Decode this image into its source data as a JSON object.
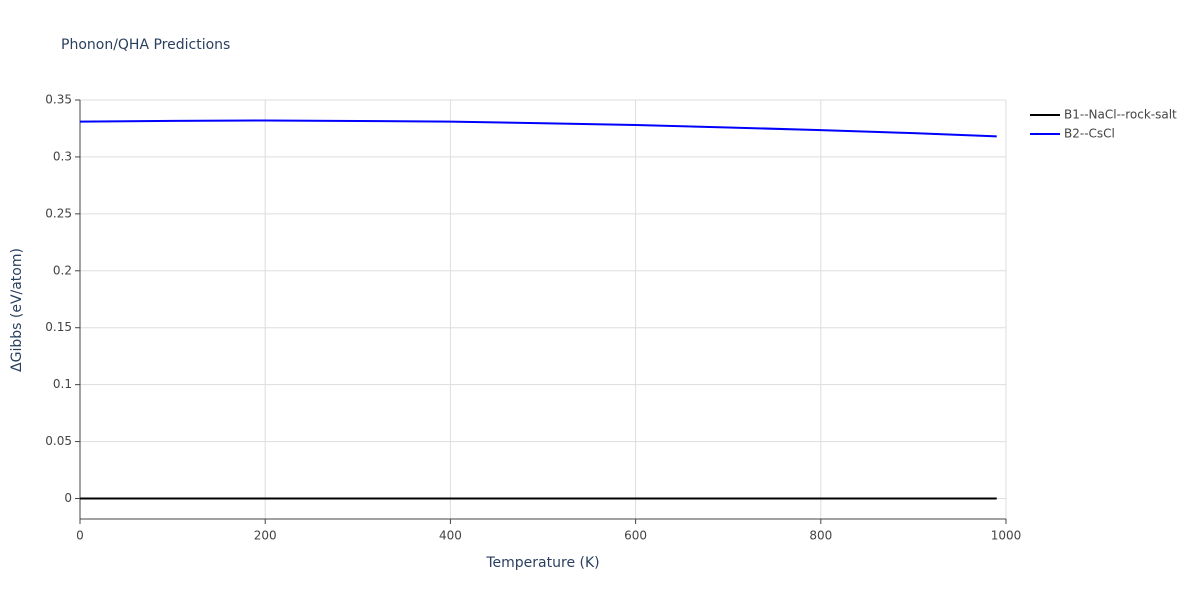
{
  "chart_data": {
    "type": "line",
    "title": "Phonon/QHA Predictions",
    "x_label": "Temperature (K)",
    "y_label": "ΔGibbs (eV/atom)",
    "x": [
      0,
      100,
      200,
      300,
      400,
      500,
      600,
      700,
      800,
      900,
      990
    ],
    "series": [
      {
        "name": "B1--NaCl--rock-salt",
        "color": "#000000",
        "values": [
          0,
          0,
          0,
          0,
          0,
          0,
          0,
          0,
          0,
          0,
          0
        ]
      },
      {
        "name": "B2--CsCl",
        "color": "#0000ff",
        "values": [
          0.331,
          0.3317,
          0.332,
          0.3316,
          0.331,
          0.3296,
          0.328,
          0.3259,
          0.3235,
          0.3209,
          0.318
        ]
      }
    ],
    "xlim": [
      0,
      1000
    ],
    "xticks": [
      0,
      200,
      400,
      600,
      800,
      1000
    ],
    "ylim": [
      -0.018,
      0.35
    ],
    "yticks": [
      0,
      0.05,
      0.1,
      0.15,
      0.2,
      0.25,
      0.3,
      0.35
    ],
    "grid": true,
    "legend": "top-right"
  }
}
